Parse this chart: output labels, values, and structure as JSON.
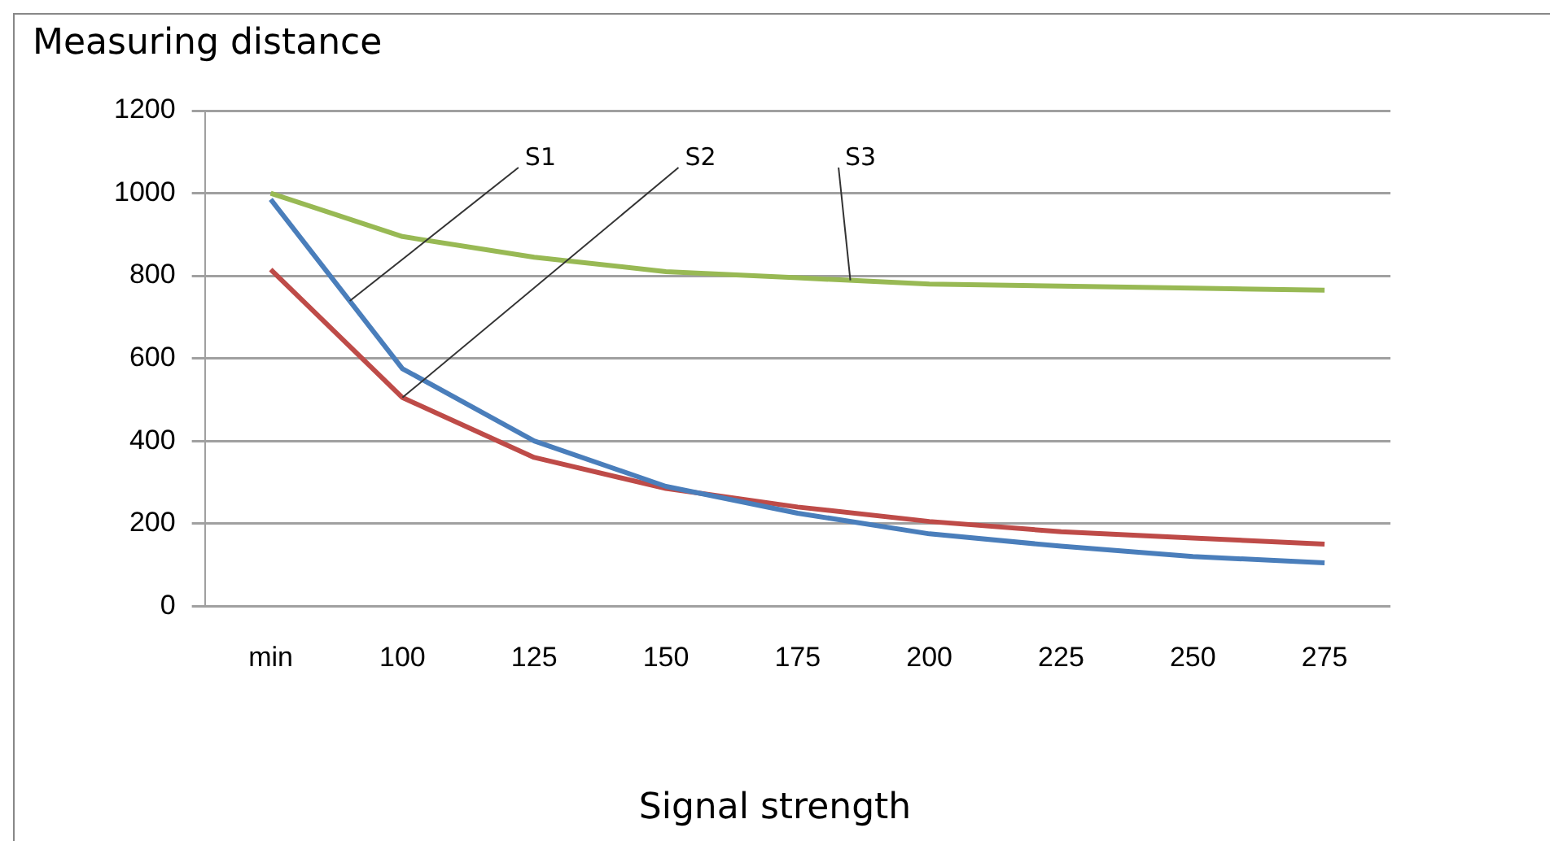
{
  "chart_data": {
    "type": "line",
    "ylabel": "Measuring distance",
    "xlabel": "Signal strength",
    "categories": [
      "min",
      "100",
      "125",
      "150",
      "175",
      "200",
      "225",
      "250",
      "275"
    ],
    "ylim": [
      0,
      1200
    ],
    "yticks": [
      0,
      200,
      400,
      600,
      800,
      1000,
      1200
    ],
    "grid": "y",
    "legend": false,
    "marker": "none",
    "series": [
      {
        "name": "S1",
        "color": "#4a7ebb",
        "values": [
          985,
          575,
          400,
          290,
          225,
          175,
          145,
          120,
          105
        ]
      },
      {
        "name": "S2",
        "color": "#be4b48",
        "values": [
          815,
          505,
          360,
          285,
          240,
          205,
          180,
          165,
          150
        ]
      },
      {
        "name": "S3",
        "color": "#98b954",
        "values": [
          1000,
          895,
          845,
          810,
          795,
          780,
          775,
          770,
          765
        ]
      }
    ]
  }
}
